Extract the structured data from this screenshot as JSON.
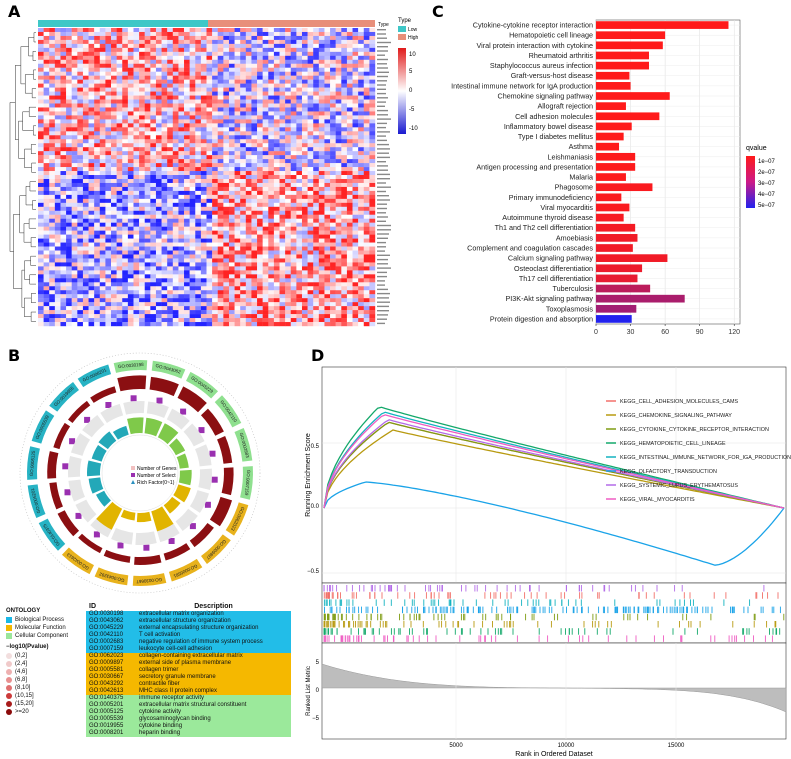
{
  "panels": {
    "A": "A",
    "B": "B",
    "C": "C",
    "D": "D"
  },
  "heatmap": {
    "type_label": "Type",
    "legend_title": "Type",
    "groups": [
      {
        "name": "Low",
        "color": "#3ec7c7"
      },
      {
        "name": "High",
        "color": "#e88f7a"
      }
    ],
    "scale_ticks": [
      "10",
      "5",
      "0",
      "-5",
      "-10"
    ],
    "colors": {
      "high": "#d62020",
      "mid": "#ffffff",
      "low": "#2222cc"
    }
  },
  "chart_data": [
    {
      "type": "bar",
      "panel": "C",
      "orientation": "horizontal",
      "categories": [
        "Cytokine-cytokine receptor interaction",
        "Hematopoietic cell lineage",
        "Viral protein interaction with cytokine",
        "Rheumatoid arthritis",
        "Staphylococcus aureus infection",
        "Graft-versus-host disease",
        "Intestinal immune network for IgA production",
        "Chemokine signaling pathway",
        "Allograft rejection",
        "Cell adhesion molecules",
        "Inflammatory bowel disease",
        "Type I diabetes mellitus",
        "Asthma",
        "Leishmaniasis",
        "Antigen processing and presentation",
        "Malaria",
        "Phagosome",
        "Primary immunodeficiency",
        "Viral myocarditis",
        "Autoimmune thyroid disease",
        "Th1 and Th2 cell differentiation",
        "Amoebiasis",
        "Complement and coagulation cascades",
        "Calcium signaling pathway",
        "Osteoclast differentiation",
        "Th17 cell differentiation",
        "Tuberculosis",
        "PI3K-Akt signaling pathway",
        "Toxoplasmosis",
        "Protein digestion and absorption"
      ],
      "values": [
        115,
        60,
        58,
        46,
        46,
        29,
        30,
        64,
        26,
        55,
        31,
        24,
        20,
        34,
        34,
        26,
        49,
        22,
        29,
        24,
        34,
        36,
        32,
        62,
        40,
        36,
        47,
        77,
        35,
        31
      ],
      "qvalues": [
        1e-09,
        1e-09,
        1e-09,
        1e-09,
        1e-09,
        1e-09,
        1e-09,
        1e-09,
        1e-09,
        1e-09,
        1e-09,
        1e-09,
        1e-09,
        2e-09,
        2e-09,
        2e-09,
        3e-09,
        3e-09,
        3e-09,
        4e-09,
        5e-09,
        6e-09,
        6e-09,
        6e-09,
        8e-09,
        1e-08,
        4e-08,
        6e-08,
        7e-08,
        5.5e-07
      ],
      "xlim": [
        0,
        125
      ],
      "xticks": [
        "0",
        "30",
        "60",
        "90",
        "120"
      ],
      "legend": {
        "title": "qvalue",
        "ticks": [
          "1e−07",
          "2e−07",
          "3e−07",
          "4e−07",
          "5e−07"
        ],
        "placement": "right"
      },
      "colors": {
        "low_q": "#ff1a1a",
        "high_q": "#2222ee"
      }
    },
    {
      "type": "line",
      "panel": "D",
      "ylabel": "Running Enrichment Score",
      "ylabel2": "Ranked List Metric",
      "xlabel": "Rank in Ordered Dataset",
      "xticks": [
        "5000",
        "10000",
        "15000"
      ],
      "yticks": [
        "0.5",
        "0.0",
        "−0.5"
      ],
      "yticks2": [
        "5",
        "0",
        "−5"
      ],
      "series": [
        {
          "name": "KEGG_CELL_ADHESION_MOLECULES_CAMS",
          "color": "#f2716a"
        },
        {
          "name": "KEGG_CHEMOKINE_SIGNALING_PATHWAY",
          "color": "#b89a10"
        },
        {
          "name": "KEGG_CYTOKINE_CYTOKINE_RECEPTOR_INTERACTION",
          "color": "#7f9c12"
        },
        {
          "name": "KEGG_HEMATOPOIETIC_CELL_LINEAGE",
          "color": "#13a86a"
        },
        {
          "name": "KEGG_INTESTINAL_IMMUNE_NETWORK_FOR_IGA_PRODUCTION",
          "color": "#14b3c0"
        },
        {
          "name": "KEGG_OLFACTORY_TRANSDUCTION",
          "color": "#1aa3e8"
        },
        {
          "name": "KEGG_SYSTEMIC_LUPUS_ERYTHEMATOSUS",
          "color": "#b36be8"
        },
        {
          "name": "KEGG_VIRAL_MYOCARDITIS",
          "color": "#ef5cc2"
        }
      ]
    },
    {
      "type": "other",
      "panel": "B",
      "outer_labels": [
        "GO:0030198",
        "GO:0043062",
        "GO:0045229",
        "GO:0042110",
        "GO:0002683",
        "GO:0007159",
        "GO:0062023",
        "GO:0009897",
        "GO:0005581",
        "GO:0030667",
        "GO:0043292",
        "GO:0042613",
        "GO:0140375",
        "GO:0005201",
        "GO:0005125",
        "GO:0005539",
        "GO:0019955",
        "GO:0008201"
      ],
      "inner_legend": [
        "Number of Genes",
        "Number of Select",
        "Rich Factor(0~1)"
      ]
    }
  ],
  "go_legend": {
    "ontology_title": "ONTOLOGY",
    "ontology": [
      {
        "name": "Biological Process",
        "color": "#1ab8e6"
      },
      {
        "name": "Molecular Function",
        "color": "#f5b800"
      },
      {
        "name": "Cellular Component",
        "color": "#9be69b"
      }
    ],
    "pvalue_title": "−log10(Pvalue)",
    "pvalue_bins": [
      {
        "name": "(0,2]",
        "color": "#f2dede"
      },
      {
        "name": "(2,4]",
        "color": "#f0caca"
      },
      {
        "name": "(4,6]",
        "color": "#eeb0b0"
      },
      {
        "name": "(6,8]",
        "color": "#e89090"
      },
      {
        "name": "(8,10]",
        "color": "#e07070"
      },
      {
        "name": "(10,15]",
        "color": "#cc3a3a"
      },
      {
        "name": "(15,20]",
        "color": "#a81c1c"
      },
      {
        "name": ">=20",
        "color": "#8b0a0a"
      }
    ]
  },
  "go_table": {
    "headers": {
      "id": "ID",
      "desc": "Description"
    },
    "rows": [
      {
        "id": "GO:0030198",
        "desc": "extracellular matrix organization",
        "group": "bp"
      },
      {
        "id": "GO:0043062",
        "desc": "extracellular structure organization",
        "group": "bp"
      },
      {
        "id": "GO:0045229",
        "desc": "external encapsulating structure organization",
        "group": "bp"
      },
      {
        "id": "GO:0042110",
        "desc": "T cell activation",
        "group": "bp"
      },
      {
        "id": "GO:0002683",
        "desc": "negative regulation of immune system process",
        "group": "bp"
      },
      {
        "id": "GO:0007159",
        "desc": "leukocyte cell-cell adhesion",
        "group": "bp"
      },
      {
        "id": "GO:0062023",
        "desc": "collagen-containing extracellular matrix",
        "group": "cc"
      },
      {
        "id": "GO:0009897",
        "desc": "external side of plasma membrane",
        "group": "cc"
      },
      {
        "id": "GO:0005581",
        "desc": "collagen trimer",
        "group": "cc"
      },
      {
        "id": "GO:0030667",
        "desc": "secretory granule membrane",
        "group": "cc"
      },
      {
        "id": "GO:0043292",
        "desc": "contractile fiber",
        "group": "cc"
      },
      {
        "id": "GO:0042613",
        "desc": "MHC class II protein complex",
        "group": "cc"
      },
      {
        "id": "GO:0140375",
        "desc": "immune receptor activity",
        "group": "mf"
      },
      {
        "id": "GO:0005201",
        "desc": "extracellular matrix structural constituent",
        "group": "mf"
      },
      {
        "id": "GO:0005125",
        "desc": "cytokine activity",
        "group": "mf"
      },
      {
        "id": "GO:0005539",
        "desc": "glycosaminoglycan binding",
        "group": "mf"
      },
      {
        "id": "GO:0019955",
        "desc": "cytokine binding",
        "group": "mf"
      },
      {
        "id": "GO:0008201",
        "desc": "heparin binding",
        "group": "mf"
      }
    ],
    "group_colors": {
      "bp": "#22bde8",
      "cc": "#f5b800",
      "mf": "#9be99b"
    }
  }
}
